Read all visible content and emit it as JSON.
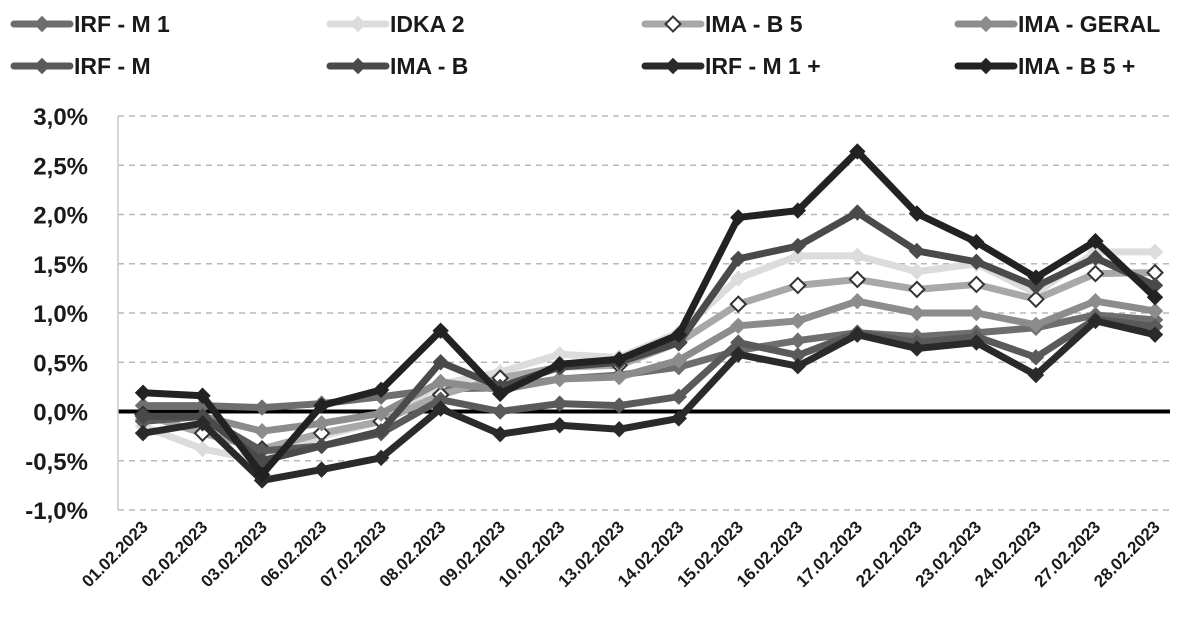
{
  "chart_data": {
    "type": "line",
    "title": "",
    "xlabel": "",
    "ylabel": "",
    "ylim": [
      -1.0,
      3.0
    ],
    "yticks": [
      "3,0%",
      "2,5%",
      "2,0%",
      "1,5%",
      "1,0%",
      "0,5%",
      "0,0%",
      "-0,5%",
      "-1,0%"
    ],
    "ytick_values": [
      3.0,
      2.5,
      2.0,
      1.5,
      1.0,
      0.5,
      0.0,
      -0.5,
      -1.0
    ],
    "grid": "horizontal dashed",
    "legend_position": "top",
    "categories": [
      "01.02.2023",
      "02.02.2023",
      "03.02.2023",
      "06.02.2023",
      "07.02.2023",
      "08.02.2023",
      "09.02.2023",
      "10.02.2023",
      "13.02.2023",
      "14.02.2023",
      "15.02.2023",
      "16.02.2023",
      "17.02.2023",
      "22.02.2023",
      "23.02.2023",
      "24.02.2023",
      "27.02.2023",
      "28.02.2023"
    ],
    "series": [
      {
        "name": "IRF - M 1",
        "color": "#6e6e6e",
        "marker": "filled",
        "values": [
          0.06,
          0.06,
          0.04,
          0.08,
          0.15,
          0.23,
          0.24,
          0.33,
          0.37,
          0.45,
          0.62,
          0.72,
          0.8,
          0.76,
          0.8,
          0.85,
          0.98,
          0.93
        ]
      },
      {
        "name": "IDKA 2",
        "color": "#dcdcdc",
        "marker": "filled",
        "values": [
          -0.15,
          -0.38,
          -0.5,
          -0.25,
          -0.1,
          0.28,
          0.4,
          0.58,
          0.55,
          0.8,
          1.35,
          1.58,
          1.58,
          1.42,
          1.5,
          1.2,
          1.62,
          1.62
        ]
      },
      {
        "name": "IMA - B 5",
        "color": "#a8a8a8",
        "marker": "hollow",
        "values": [
          -0.03,
          -0.22,
          -0.38,
          -0.22,
          -0.1,
          0.17,
          0.34,
          0.45,
          0.47,
          0.7,
          1.09,
          1.28,
          1.34,
          1.24,
          1.29,
          1.14,
          1.4,
          1.41
        ]
      },
      {
        "name": "IMA - GERAL",
        "color": "#8c8c8c",
        "marker": "filled",
        "values": [
          -0.08,
          -0.05,
          -0.2,
          -0.12,
          -0.02,
          0.3,
          0.22,
          0.33,
          0.35,
          0.52,
          0.87,
          0.92,
          1.12,
          1.0,
          1.0,
          0.88,
          1.12,
          1.02
        ]
      },
      {
        "name": "IRF - M",
        "color": "#5a5a5a",
        "marker": "filled",
        "values": [
          -0.1,
          -0.05,
          -0.4,
          -0.35,
          -0.22,
          0.12,
          0.0,
          0.08,
          0.06,
          0.15,
          0.7,
          0.57,
          0.8,
          0.7,
          0.76,
          0.55,
          0.94,
          0.86
        ]
      },
      {
        "name": "IMA - B",
        "color": "#4a4a4a",
        "marker": "filled",
        "values": [
          -0.05,
          -0.05,
          -0.5,
          -0.35,
          -0.2,
          0.5,
          0.25,
          0.45,
          0.5,
          0.7,
          1.55,
          1.68,
          2.02,
          1.63,
          1.52,
          1.27,
          1.56,
          1.28
        ]
      },
      {
        "name": "IRF - M 1 +",
        "color": "#2a2a2a",
        "marker": "filled",
        "values": [
          -0.22,
          -0.12,
          -0.7,
          -0.59,
          -0.47,
          0.03,
          -0.23,
          -0.14,
          -0.18,
          -0.07,
          0.58,
          0.46,
          0.78,
          0.64,
          0.7,
          0.37,
          0.92,
          0.78
        ]
      },
      {
        "name": "IMA - B 5 +",
        "color": "#222222",
        "marker": "filled",
        "values": [
          0.19,
          0.16,
          -0.64,
          0.06,
          0.22,
          0.82,
          0.18,
          0.48,
          0.53,
          0.78,
          1.97,
          2.04,
          2.64,
          2.01,
          1.72,
          1.36,
          1.73,
          1.16
        ]
      }
    ]
  }
}
